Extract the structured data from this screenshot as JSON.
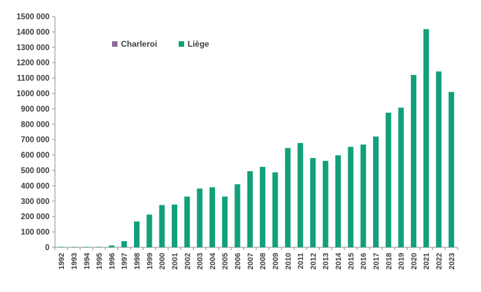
{
  "chart_data": {
    "type": "bar",
    "title": "",
    "xlabel": "",
    "ylabel": "",
    "ylim": [
      0,
      1500000
    ],
    "yticks": [
      0,
      100000,
      200000,
      300000,
      400000,
      500000,
      600000,
      700000,
      800000,
      900000,
      1000000,
      1100000,
      1200000,
      1300000,
      1400000,
      1500000
    ],
    "ytick_labels": [
      "0",
      "100 000",
      "200 000",
      "300 000",
      "400 000",
      "500 000",
      "600 000",
      "700 000",
      "800 000",
      "900 000",
      "1000 000",
      "1100 000",
      "1200 000",
      "1300 000",
      "1400 000",
      "1500 000"
    ],
    "categories": [
      "1992",
      "1993",
      "1994",
      "1995",
      "1996",
      "1997",
      "1998",
      "1999",
      "2000",
      "2001",
      "2002",
      "2003",
      "2004",
      "2005",
      "2006",
      "2007",
      "2008",
      "2009",
      "2010",
      "2011",
      "2012",
      "2013",
      "2014",
      "2015",
      "2016",
      "2017",
      "2018",
      "2019",
      "2020",
      "2021",
      "2022",
      "2023"
    ],
    "series": [
      {
        "name": "Charleroi",
        "color": "#8b6a9c",
        "values": [
          0,
          0,
          0,
          0,
          0,
          0,
          0,
          0,
          0,
          0,
          0,
          0,
          0,
          0,
          0,
          0,
          0,
          0,
          0,
          0,
          0,
          0,
          0,
          0,
          0,
          0,
          0,
          0,
          0,
          0,
          0,
          0
        ]
      },
      {
        "name": "Liège",
        "color": "#12a07a",
        "values": [
          3000,
          3000,
          3000,
          3000,
          12000,
          40000,
          168000,
          213000,
          275000,
          278000,
          330000,
          382000,
          390000,
          330000,
          410000,
          495000,
          523000,
          487000,
          645000,
          678000,
          580000,
          562000,
          598000,
          653000,
          668000,
          720000,
          875000,
          908000,
          1120000,
          1418000,
          1143000,
          1010000
        ]
      }
    ],
    "legend_position": "top-left",
    "grid": false
  }
}
